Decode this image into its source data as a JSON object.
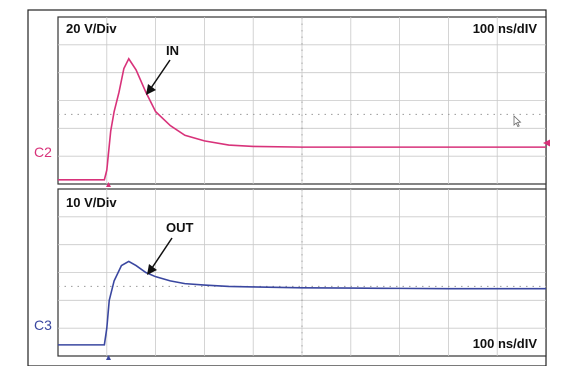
{
  "chart_data": [
    {
      "type": "line",
      "channel": "C2",
      "vertical_scale": "20 V/Div",
      "horizontal_scale": "100 ns/dIV",
      "annotation": "IN",
      "color": "#d8327a",
      "x_divisions": 10,
      "y_divisions": 6,
      "x_unit": "ns",
      "y_unit": "V",
      "xlim": [
        0,
        1000
      ],
      "ylim": [
        0,
        120
      ],
      "series": [
        {
          "x": [
            0,
            95,
            100,
            108,
            115,
            125,
            135,
            145,
            160,
            180,
            200,
            230,
            260,
            300,
            350,
            400,
            500,
            600,
            700,
            800,
            900,
            1000
          ],
          "y": [
            3,
            3,
            10,
            38,
            52,
            66,
            83,
            90,
            82,
            66,
            52,
            42,
            35,
            31,
            28,
            27,
            26.5,
            26.5,
            26.5,
            26.5,
            26.5,
            26.5
          ]
        }
      ]
    },
    {
      "type": "line",
      "channel": "C3",
      "vertical_scale": "10 V/Div",
      "horizontal_scale": "100 ns/dIV",
      "annotation": "OUT",
      "color": "#3a47a0",
      "x_divisions": 10,
      "y_divisions": 6,
      "x_unit": "ns",
      "y_unit": "V",
      "xlim": [
        0,
        1000
      ],
      "ylim": [
        0,
        60
      ],
      "series": [
        {
          "x": [
            0,
            95,
            100,
            105,
            115,
            130,
            145,
            160,
            180,
            200,
            230,
            260,
            300,
            350,
            400,
            500,
            600,
            700,
            800,
            900,
            1000
          ],
          "y": [
            4,
            4,
            10,
            20,
            27,
            32.5,
            34,
            32.5,
            30,
            28.5,
            27,
            26,
            25.5,
            25,
            24.8,
            24.5,
            24.4,
            24.3,
            24.2,
            24.2,
            24.2
          ]
        }
      ]
    }
  ]
}
